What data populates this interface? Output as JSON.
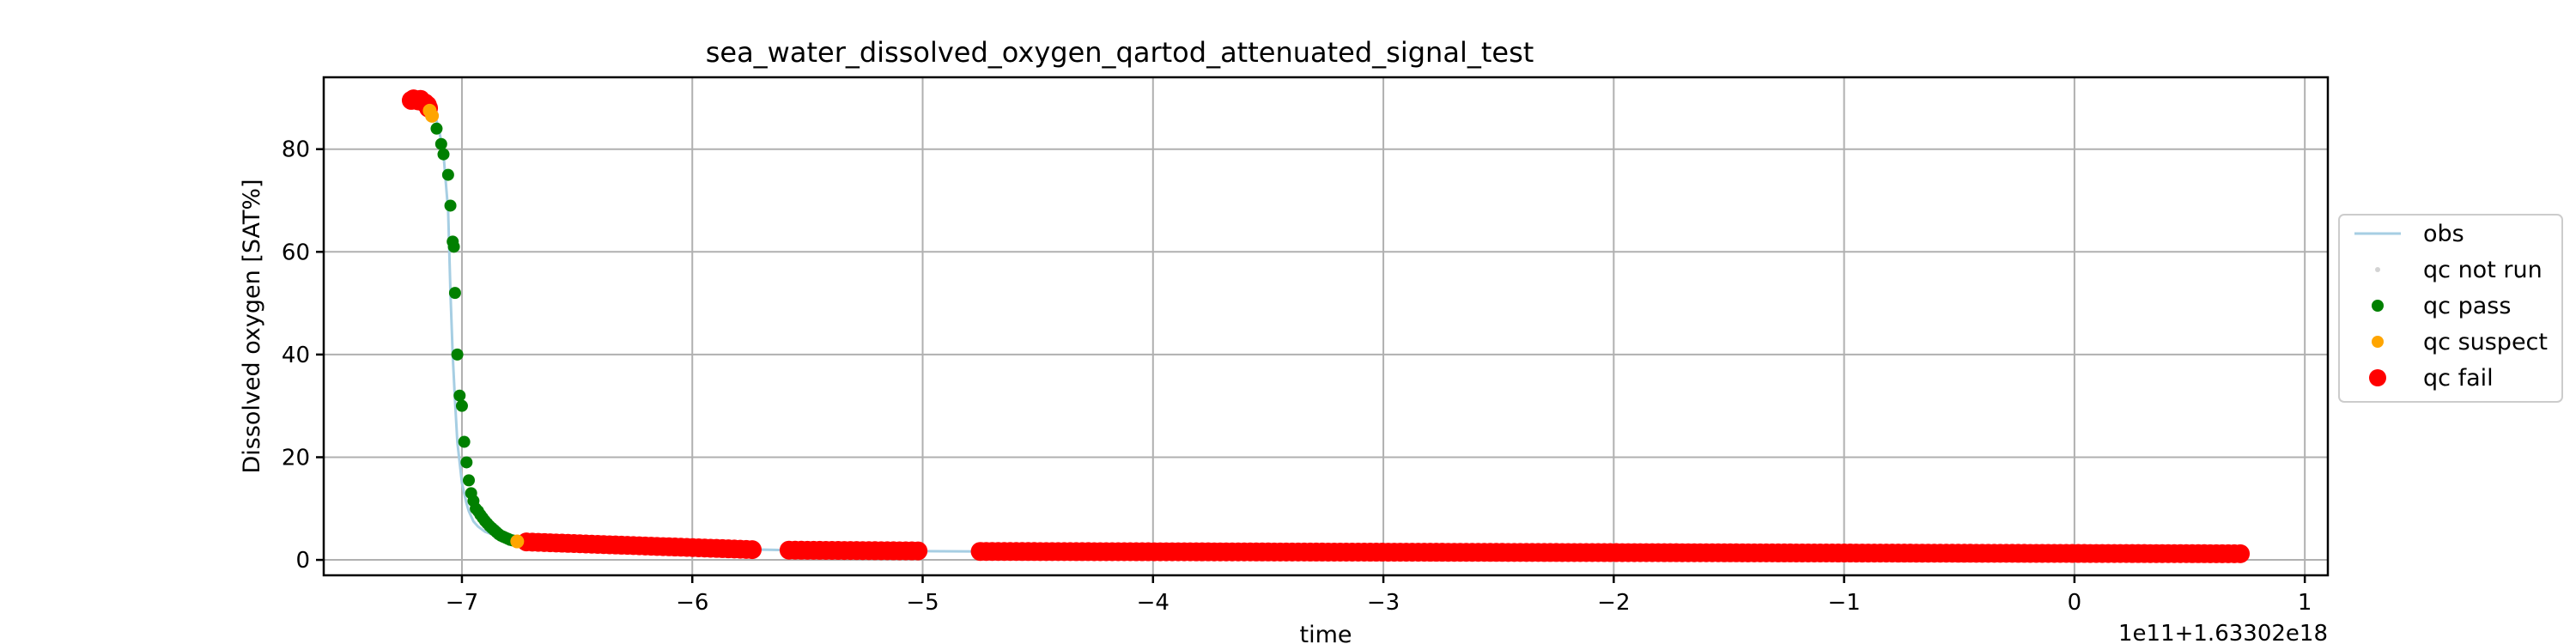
{
  "chart_data": {
    "type": "line",
    "title": "sea_water_dissolved_oxygen_qartod_attenuated_signal_test",
    "xlabel": "time",
    "ylabel": "Dissolved oxygen [SAT%]",
    "offset_label": "1e11+1.63302e18",
    "xlim": [
      -7.6,
      1.1
    ],
    "ylim": [
      -3,
      94
    ],
    "xticks": [
      {
        "value": -7,
        "label": "−7"
      },
      {
        "value": -6,
        "label": "−6"
      },
      {
        "value": -5,
        "label": "−5"
      },
      {
        "value": -4,
        "label": "−4"
      },
      {
        "value": -3,
        "label": "−3"
      },
      {
        "value": -2,
        "label": "−2"
      },
      {
        "value": -1,
        "label": "−1"
      },
      {
        "value": 0,
        "label": "0"
      },
      {
        "value": 1,
        "label": "1"
      }
    ],
    "yticks": [
      {
        "value": 0,
        "label": "0"
      },
      {
        "value": 20,
        "label": "20"
      },
      {
        "value": 40,
        "label": "40"
      },
      {
        "value": 60,
        "label": "60"
      },
      {
        "value": 80,
        "label": "80"
      }
    ],
    "grid": true,
    "legend_position": "outside-right",
    "series": [
      {
        "name": "obs",
        "kind": "line",
        "color": "#a6cee3",
        "x": [
          -7.22,
          -7.18,
          -7.15,
          -7.12,
          -7.1,
          -7.08,
          -7.06,
          -7.05,
          -7.04,
          -7.03,
          -7.02,
          -7.01,
          -7.0,
          -6.99,
          -6.98,
          -6.97,
          -6.96,
          -6.95,
          -6.93,
          -6.9,
          -6.87,
          -6.84,
          -6.8,
          -6.76,
          -6.72,
          -6.6,
          -6.4,
          -6.2,
          -6.0,
          -5.9,
          -5.75,
          -5.7,
          -5.58,
          -5.4,
          -5.2,
          -5.0,
          -4.75,
          -4.5,
          -4.0,
          -3.5,
          -3.0,
          -2.5,
          -2.0,
          -1.5,
          -1.0,
          -0.5,
          0.0,
          0.5,
          0.72
        ],
        "y": [
          89,
          89,
          88.5,
          87,
          84,
          79,
          68,
          52,
          40,
          31,
          23,
          19,
          15,
          13,
          11,
          9.5,
          8.5,
          7.5,
          6.5,
          5.5,
          5,
          4.3,
          3.8,
          3.5,
          3.4,
          3.2,
          3.0,
          2.8,
          2.6,
          2.4,
          2.2,
          2.0,
          1.9,
          1.8,
          1.75,
          1.7,
          1.65,
          1.6,
          1.55,
          1.5,
          1.45,
          1.4,
          1.4,
          1.35,
          1.3,
          1.3,
          1.25,
          1.2,
          1.2
        ]
      },
      {
        "name": "qc not run",
        "kind": "marker",
        "color": "#d3d3d3",
        "x": [],
        "y": []
      },
      {
        "name": "qc pass",
        "kind": "marker",
        "color": "#008000",
        "x": [
          -7.11,
          -7.09,
          -7.08,
          -7.06,
          -7.05,
          -7.04,
          -7.035,
          -7.03,
          -7.02,
          -7.01,
          -7.0,
          -6.99,
          -6.98,
          -6.97,
          -6.96,
          -6.95,
          -6.94,
          -6.93,
          -6.92,
          -6.91,
          -6.9,
          -6.89,
          -6.88,
          -6.87,
          -6.86,
          -6.85,
          -6.84,
          -6.83,
          -6.82,
          -6.81,
          -6.8,
          -6.79,
          -6.78,
          -6.77
        ],
        "y": [
          84,
          81,
          79,
          75,
          69,
          62,
          61,
          52,
          40,
          32,
          30,
          23,
          19,
          15.5,
          13,
          11.5,
          10,
          9.5,
          8.8,
          8.2,
          7.6,
          7.1,
          6.6,
          6.2,
          5.8,
          5.4,
          5.0,
          4.7,
          4.5,
          4.3,
          4.1,
          3.9,
          3.8,
          3.7
        ]
      },
      {
        "name": "qc suspect",
        "kind": "marker",
        "color": "#ffa500",
        "x": [
          -7.14,
          -7.13,
          -6.76
        ],
        "y": [
          87.5,
          86.5,
          3.6
        ]
      },
      {
        "name": "qc fail",
        "kind": "marker",
        "color": "#ff0000",
        "segments": [
          {
            "x": [
              -7.22,
              -6.72
            ],
            "y": [
              89.5,
              89.5
            ],
            "dense": false
          },
          {
            "x": [
              -6.72,
              -5.74
            ],
            "y": [
              3.5,
              2.0
            ],
            "dense": true
          },
          {
            "x": [
              -5.58,
              -5.02
            ],
            "y": [
              1.9,
              1.75
            ],
            "dense": true
          },
          {
            "x": [
              -4.75,
              0.72
            ],
            "y": [
              1.65,
              1.2
            ],
            "dense": true
          }
        ],
        "head_x": [
          -7.22,
          -7.21,
          -7.2,
          -7.19,
          -7.18,
          -7.17,
          -7.16,
          -7.15,
          -7.145
        ],
        "head_y": [
          89.5,
          89.8,
          89.6,
          89.4,
          89.7,
          89.2,
          89.0,
          88.6,
          88.0
        ]
      }
    ]
  },
  "legend": {
    "items": [
      {
        "label": "obs",
        "kind": "line",
        "color": "#a6cee3"
      },
      {
        "label": "qc not run",
        "kind": "dot-small",
        "color": "#d3d3d3"
      },
      {
        "label": "qc pass",
        "kind": "dot-medium",
        "color": "#008000"
      },
      {
        "label": "qc suspect",
        "kind": "dot-medium",
        "color": "#ffa500"
      },
      {
        "label": "qc fail",
        "kind": "dot-large",
        "color": "#ff0000"
      }
    ]
  }
}
